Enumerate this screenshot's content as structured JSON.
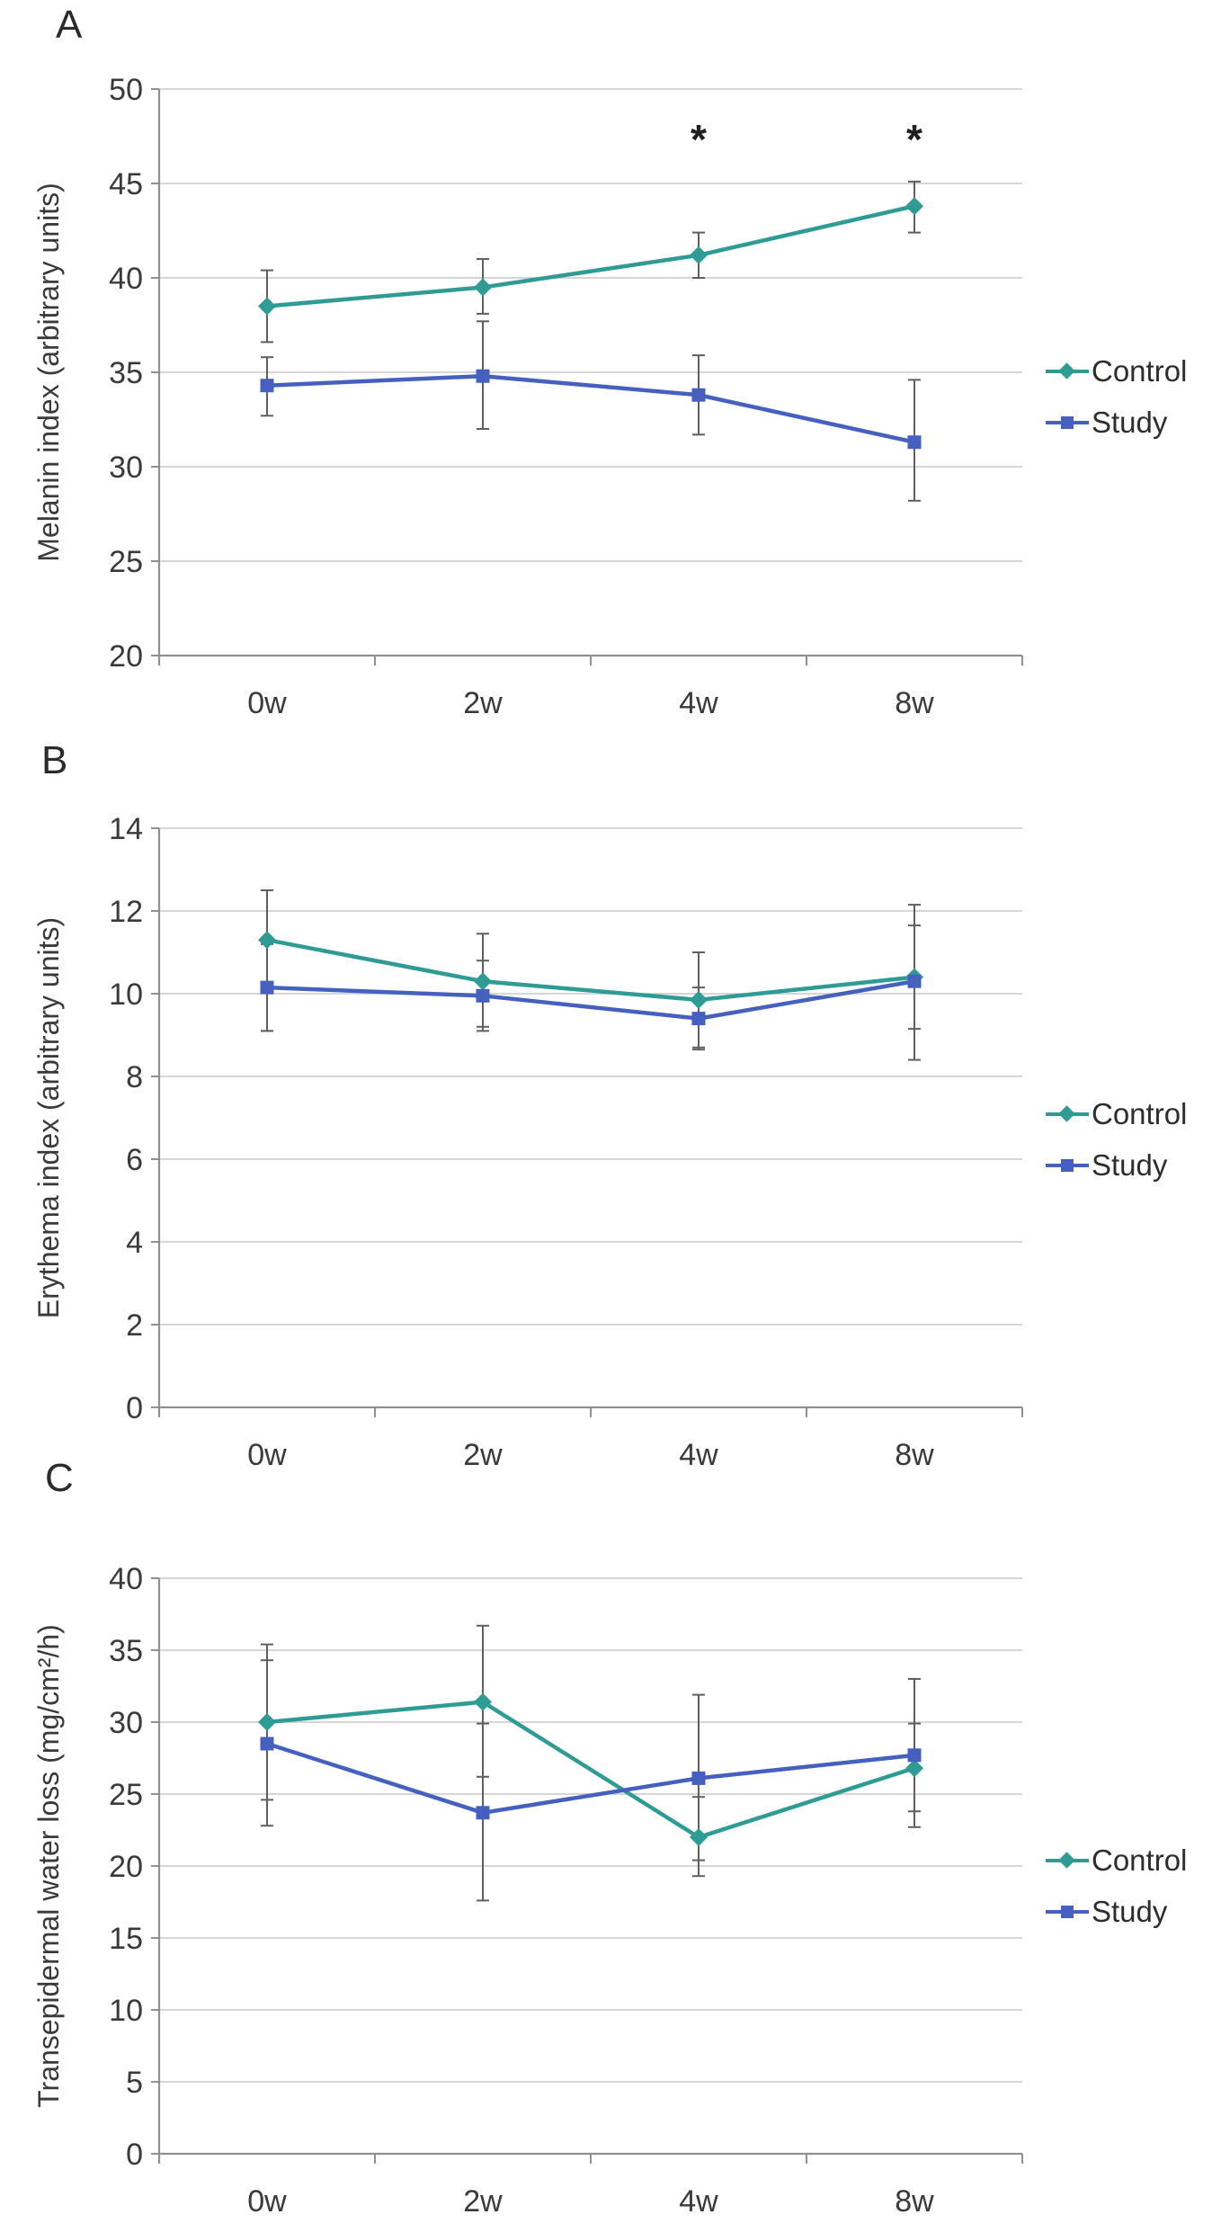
{
  "colors": {
    "control": "#2E9B94",
    "study": "#4560BE",
    "grid": "#C8C8C8",
    "axis": "#8F8F8F",
    "error_bar": "#5F5F5F",
    "text": "#3A3A3A",
    "annotation": "#1F1F1F",
    "background": "#FFFFFF"
  },
  "chart_data": [
    {
      "type": "line",
      "panel": "A",
      "ylabel": "Melanin index (arbitrary units)",
      "xlabel": "",
      "categories": [
        "0w",
        "2w",
        "4w",
        "8w"
      ],
      "ylim": [
        20,
        50
      ],
      "ytick_step": 5,
      "grid": true,
      "legend_position": "right",
      "series": [
        {
          "name": "Control",
          "marker": "diamond",
          "color_key": "control",
          "values": [
            38.5,
            39.5,
            41.2,
            43.8
          ],
          "err_low": [
            36.6,
            38.1,
            40.0,
            42.4
          ],
          "err_high": [
            40.4,
            41.0,
            42.4,
            45.1
          ]
        },
        {
          "name": "Study",
          "marker": "square",
          "color_key": "study",
          "values": [
            34.3,
            34.8,
            33.8,
            31.3
          ],
          "err_low": [
            32.7,
            32.0,
            31.7,
            28.2
          ],
          "err_high": [
            35.8,
            37.7,
            35.9,
            34.6
          ]
        }
      ],
      "annotations": [
        {
          "text": "*",
          "category": 2,
          "y": 48.0
        },
        {
          "text": "*",
          "category": 3,
          "y": 48.0
        }
      ]
    },
    {
      "type": "line",
      "panel": "B",
      "ylabel": "Erythema index (arbitrary units)",
      "xlabel": "",
      "categories": [
        "0w",
        "2w",
        "4w",
        "8w"
      ],
      "ylim": [
        0,
        14
      ],
      "ytick_step": 2,
      "grid": true,
      "legend_position": "right",
      "series": [
        {
          "name": "Control",
          "marker": "diamond",
          "color_key": "control",
          "values": [
            11.3,
            10.3,
            9.85,
            10.4
          ],
          "err_low": [
            9.1,
            9.2,
            8.7,
            8.4
          ],
          "err_high": [
            12.5,
            11.45,
            11.0,
            12.15
          ]
        },
        {
          "name": "Study",
          "marker": "square",
          "color_key": "study",
          "values": [
            10.15,
            9.95,
            9.4,
            10.3
          ],
          "err_low": [
            9.1,
            9.1,
            8.65,
            9.15
          ],
          "err_high": [
            11.2,
            10.8,
            10.15,
            11.65
          ]
        }
      ],
      "annotations": []
    },
    {
      "type": "line",
      "panel": "C",
      "ylabel": "Transepidermal water loss (mg/cm²/h)",
      "xlabel": "",
      "categories": [
        "0w",
        "2w",
        "4w",
        "8w"
      ],
      "ylim": [
        0,
        40
      ],
      "ytick_step": 5,
      "grid": true,
      "legend_position": "right",
      "series": [
        {
          "name": "Control",
          "marker": "diamond",
          "color_key": "control",
          "values": [
            30.0,
            31.4,
            22.0,
            26.8
          ],
          "err_low": [
            24.6,
            26.2,
            19.3,
            23.8
          ],
          "err_high": [
            35.4,
            36.7,
            24.8,
            29.9
          ]
        },
        {
          "name": "Study",
          "marker": "square",
          "color_key": "study",
          "values": [
            28.5,
            23.7,
            26.1,
            27.7
          ],
          "err_low": [
            22.8,
            17.6,
            20.4,
            22.7
          ],
          "err_high": [
            34.3,
            29.9,
            31.9,
            33.0
          ]
        }
      ],
      "annotations": []
    }
  ]
}
